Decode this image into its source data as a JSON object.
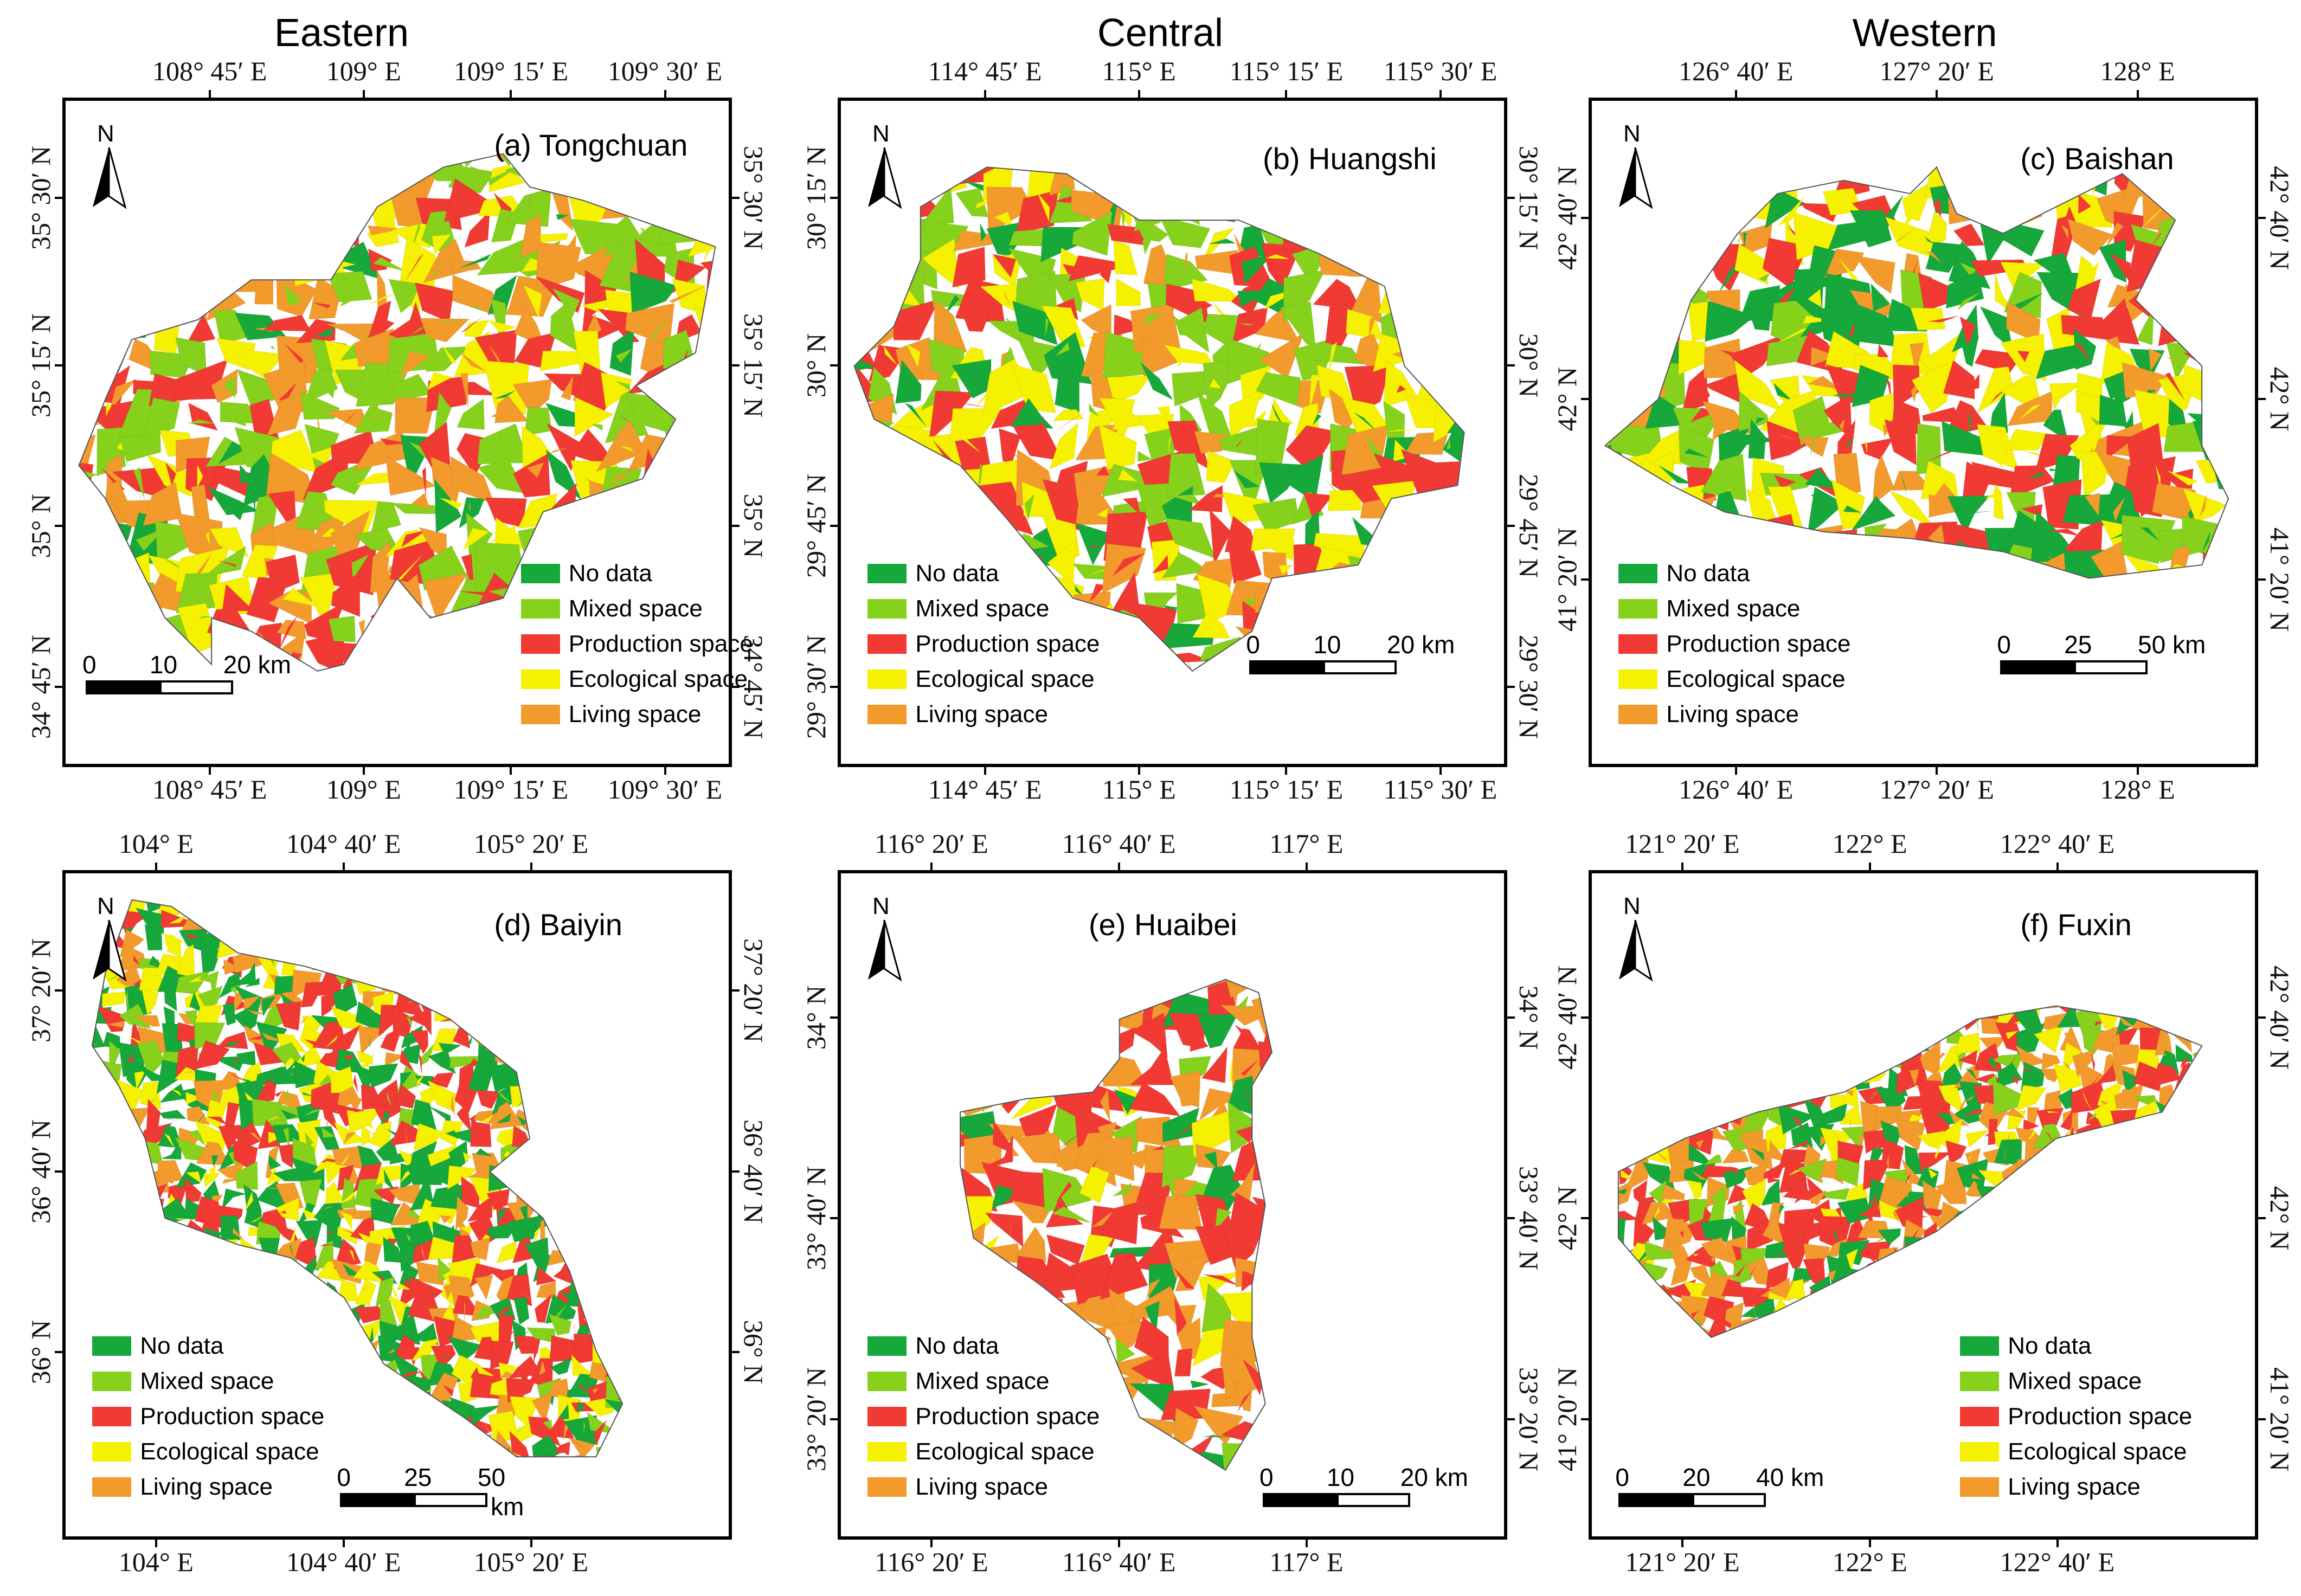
{
  "headings": {
    "eastern": "Eastern",
    "central": "Central",
    "western": "Western"
  },
  "colors": {
    "no_data": "#16a83a",
    "mixed": "#86d11c",
    "production": "#f03a33",
    "ecological": "#f5f100",
    "living": "#f39a2c"
  },
  "legend": [
    "No data",
    "Mixed space",
    "Production space",
    "Ecological space",
    "Living space"
  ],
  "north_label": "N",
  "panels": [
    {
      "title": "(a) Tongchuan",
      "top_coords": [
        "108° 45′ E",
        "109° E",
        "109° 15′ E",
        "109° 30′ E"
      ],
      "bottom_coords": [
        "108° 45′ E",
        "109° E",
        "109° 15′ E",
        "109° 30′ E"
      ],
      "left_coords": [
        "35° 30′ N",
        "35° 15′ N",
        "35° N",
        "34° 45′ N"
      ],
      "right_coords": [
        "35° 30′ N",
        "35° 15′ N",
        "35° N",
        "34° 45′ N"
      ],
      "scale": {
        "labels": [
          "0",
          "10",
          "20 km"
        ],
        "unit_below": ""
      }
    },
    {
      "title": "(b) Huangshi",
      "top_coords": [
        "114° 45′ E",
        "115° E",
        "115° 15′ E",
        "115° 30′ E"
      ],
      "bottom_coords": [
        "114° 45′ E",
        "115° E",
        "115° 15′ E",
        "115° 30′ E"
      ],
      "left_coords": [
        "30° 15′ N",
        "30° N",
        "29° 45′ N",
        "29° 30′ N"
      ],
      "right_coords": [
        "30° 15′ N",
        "30° N",
        "29° 45′ N",
        "29° 30′ N"
      ],
      "scale": {
        "labels": [
          "0",
          "10",
          "20 km"
        ],
        "unit_below": ""
      }
    },
    {
      "title": "(c) Baishan",
      "top_coords": [
        "126° 40′ E",
        "127° 20′ E",
        "128° E"
      ],
      "bottom_coords": [
        "126° 40′ E",
        "127° 20′ E",
        "128° E"
      ],
      "left_coords": [
        "42° 40′ N",
        "42° N",
        "41° 20′ N"
      ],
      "right_coords": [
        "42° 40′ N",
        "42° N",
        "41° 20′ N"
      ],
      "scale": {
        "labels": [
          "0",
          "25",
          "50 km"
        ],
        "unit_below": ""
      }
    },
    {
      "title": "(d) Baiyin",
      "top_coords": [
        "104° E",
        "104° 40′ E",
        "105° 20′ E"
      ],
      "bottom_coords": [
        "104° E",
        "104° 40′ E",
        "105° 20′ E"
      ],
      "left_coords": [
        "37° 20′ N",
        "36° 40′ N",
        "36° N"
      ],
      "right_coords": [
        "37° 20′ N",
        "36° 40′ N",
        "36° N"
      ],
      "scale": {
        "labels": [
          "0",
          "25",
          "50"
        ],
        "unit_below": "km"
      }
    },
    {
      "title": "(e) Huaibei",
      "top_coords": [
        "116° 20′ E",
        "116° 40′ E",
        "117° E"
      ],
      "bottom_coords": [
        "116° 20′ E",
        "116° 40′ E",
        "117° E"
      ],
      "left_coords": [
        "34° N",
        "33° 40′ N",
        "33° 20′ N"
      ],
      "right_coords": [
        "34° N",
        "33° 40′ N",
        "33° 20′ N"
      ],
      "scale": {
        "labels": [
          "0",
          "10",
          "20 km"
        ],
        "unit_below": ""
      }
    },
    {
      "title": "(f) Fuxin",
      "top_coords": [
        "121° 20′ E",
        "122° E",
        "122° 40′ E"
      ],
      "bottom_coords": [
        "121° 20′ E",
        "122° E",
        "122° 40′ E"
      ],
      "left_coords": [
        "42° 40′ N",
        "42° N",
        "41° 20′ N"
      ],
      "right_coords": [
        "42° 40′ N",
        "42° N",
        "41° 20′ N"
      ],
      "scale": {
        "labels": [
          "0",
          "20",
          "40 km"
        ],
        "unit_below": ""
      }
    }
  ]
}
